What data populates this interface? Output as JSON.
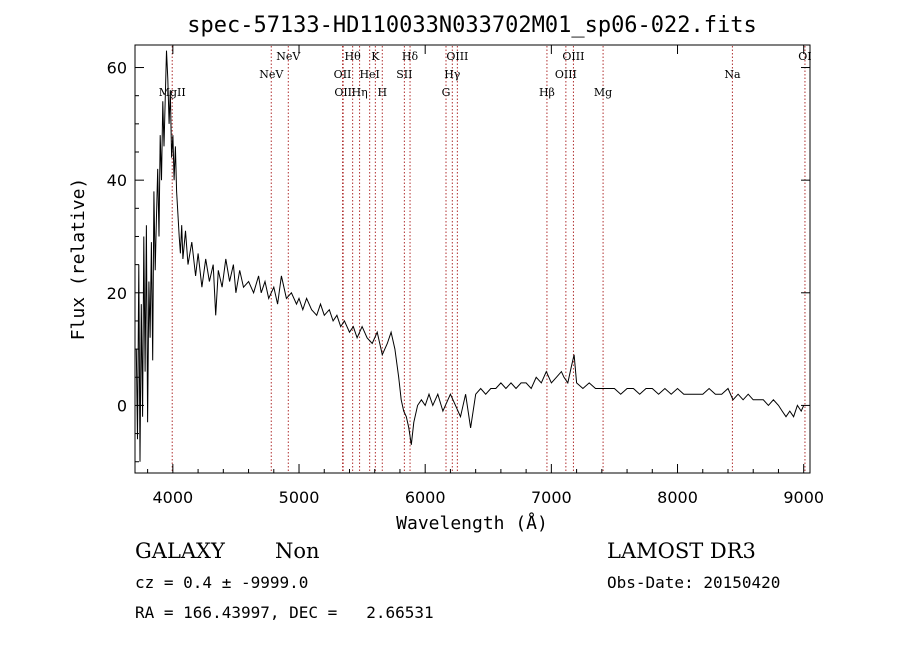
{
  "chart_data": {
    "type": "line",
    "title": "spec-57133-HD110033N033702M01_sp06-022.fits",
    "xlabel": "Wavelength (Å)",
    "ylabel": "Flux (relative)",
    "xlim": [
      3700,
      9050
    ],
    "ylim": [
      -12,
      64
    ],
    "xticks": [
      4000,
      5000,
      6000,
      7000,
      8000,
      9000
    ],
    "yticks": [
      0,
      20,
      40,
      60
    ],
    "grid": false,
    "line_color": "#000000",
    "marker_color": "#b03030",
    "series": [
      {
        "values": [
          [
            3710,
            10
          ],
          [
            3720,
            -6
          ],
          [
            3730,
            25
          ],
          [
            3740,
            -10
          ],
          [
            3750,
            18
          ],
          [
            3760,
            -2
          ],
          [
            3770,
            30
          ],
          [
            3780,
            6
          ],
          [
            3790,
            32
          ],
          [
            3800,
            -3
          ],
          [
            3810,
            22
          ],
          [
            3820,
            12
          ],
          [
            3830,
            29
          ],
          [
            3840,
            8
          ],
          [
            3850,
            38
          ],
          [
            3860,
            24
          ],
          [
            3870,
            33
          ],
          [
            3880,
            42
          ],
          [
            3890,
            30
          ],
          [
            3900,
            48
          ],
          [
            3910,
            40
          ],
          [
            3920,
            54
          ],
          [
            3930,
            46
          ],
          [
            3950,
            63
          ],
          [
            3960,
            58
          ],
          [
            3970,
            50
          ],
          [
            3980,
            56
          ],
          [
            3990,
            44
          ],
          [
            4000,
            48
          ],
          [
            4010,
            40
          ],
          [
            4020,
            46
          ],
          [
            4030,
            38
          ],
          [
            4040,
            34
          ],
          [
            4050,
            30
          ],
          [
            4060,
            27
          ],
          [
            4070,
            32
          ],
          [
            4080,
            26
          ],
          [
            4100,
            31
          ],
          [
            4120,
            25
          ],
          [
            4150,
            29
          ],
          [
            4180,
            23
          ],
          [
            4200,
            27
          ],
          [
            4230,
            21
          ],
          [
            4260,
            26
          ],
          [
            4290,
            22
          ],
          [
            4320,
            25
          ],
          [
            4340,
            16
          ],
          [
            4360,
            24
          ],
          [
            4390,
            21
          ],
          [
            4420,
            26
          ],
          [
            4450,
            22
          ],
          [
            4480,
            25
          ],
          [
            4500,
            20
          ],
          [
            4530,
            24
          ],
          [
            4560,
            21
          ],
          [
            4600,
            22
          ],
          [
            4640,
            20
          ],
          [
            4680,
            23
          ],
          [
            4700,
            20
          ],
          [
            4730,
            22
          ],
          [
            4760,
            19
          ],
          [
            4800,
            21
          ],
          [
            4830,
            18
          ],
          [
            4860,
            23
          ],
          [
            4900,
            19
          ],
          [
            4940,
            20
          ],
          [
            4980,
            18
          ],
          [
            5000,
            19
          ],
          [
            5030,
            17
          ],
          [
            5060,
            19
          ],
          [
            5100,
            17
          ],
          [
            5140,
            16
          ],
          [
            5170,
            18
          ],
          [
            5200,
            16
          ],
          [
            5240,
            17
          ],
          [
            5270,
            15
          ],
          [
            5300,
            16
          ],
          [
            5330,
            14
          ],
          [
            5360,
            15
          ],
          [
            5400,
            13
          ],
          [
            5430,
            14
          ],
          [
            5460,
            12
          ],
          [
            5500,
            14
          ],
          [
            5540,
            12
          ],
          [
            5580,
            11
          ],
          [
            5620,
            13
          ],
          [
            5660,
            9
          ],
          [
            5700,
            11
          ],
          [
            5730,
            13
          ],
          [
            5760,
            10
          ],
          [
            5790,
            5
          ],
          [
            5810,
            1
          ],
          [
            5830,
            -1
          ],
          [
            5850,
            -2
          ],
          [
            5870,
            -4
          ],
          [
            5890,
            -7
          ],
          [
            5910,
            -3
          ],
          [
            5940,
            0
          ],
          [
            5970,
            1
          ],
          [
            6000,
            0
          ],
          [
            6030,
            2
          ],
          [
            6060,
            0
          ],
          [
            6100,
            2
          ],
          [
            6140,
            -1
          ],
          [
            6180,
            1
          ],
          [
            6200,
            2
          ],
          [
            6240,
            0
          ],
          [
            6280,
            -2
          ],
          [
            6320,
            2
          ],
          [
            6360,
            -4
          ],
          [
            6400,
            2
          ],
          [
            6440,
            3
          ],
          [
            6480,
            2
          ],
          [
            6520,
            3
          ],
          [
            6560,
            3
          ],
          [
            6600,
            4
          ],
          [
            6640,
            3
          ],
          [
            6680,
            4
          ],
          [
            6720,
            3
          ],
          [
            6760,
            4
          ],
          [
            6800,
            4
          ],
          [
            6840,
            3
          ],
          [
            6880,
            5
          ],
          [
            6920,
            4
          ],
          [
            6960,
            6
          ],
          [
            7000,
            4
          ],
          [
            7040,
            5
          ],
          [
            7080,
            6
          ],
          [
            7100,
            5
          ],
          [
            7130,
            4
          ],
          [
            7160,
            7
          ],
          [
            7180,
            9
          ],
          [
            7200,
            4
          ],
          [
            7250,
            3
          ],
          [
            7300,
            4
          ],
          [
            7350,
            3
          ],
          [
            7400,
            3
          ],
          [
            7450,
            3
          ],
          [
            7500,
            3
          ],
          [
            7550,
            2
          ],
          [
            7600,
            3
          ],
          [
            7650,
            3
          ],
          [
            7700,
            2
          ],
          [
            7750,
            3
          ],
          [
            7800,
            3
          ],
          [
            7850,
            2
          ],
          [
            7900,
            3
          ],
          [
            7950,
            2
          ],
          [
            8000,
            3
          ],
          [
            8050,
            2
          ],
          [
            8100,
            2
          ],
          [
            8150,
            2
          ],
          [
            8200,
            2
          ],
          [
            8250,
            3
          ],
          [
            8300,
            2
          ],
          [
            8350,
            2
          ],
          [
            8400,
            3
          ],
          [
            8440,
            1
          ],
          [
            8480,
            2
          ],
          [
            8520,
            1
          ],
          [
            8560,
            2
          ],
          [
            8600,
            1
          ],
          [
            8640,
            1
          ],
          [
            8680,
            1
          ],
          [
            8720,
            0
          ],
          [
            8760,
            1
          ],
          [
            8800,
            0
          ],
          [
            8830,
            -1
          ],
          [
            8860,
            -2
          ],
          [
            8890,
            -1
          ],
          [
            8920,
            -2
          ],
          [
            8950,
            0
          ],
          [
            8980,
            -1
          ],
          [
            9000,
            0
          ]
        ]
      }
    ],
    "lines": [
      {
        "wavelength": 3995,
        "label": "MgII",
        "row": 3
      },
      {
        "wavelength": 4780,
        "label": "NeV",
        "row": 2
      },
      {
        "wavelength": 4915,
        "label": "NeV",
        "row": 1
      },
      {
        "wavelength": 5345,
        "label": "OII",
        "row": 2
      },
      {
        "wavelength": 5350,
        "label": "OII",
        "row": 3
      },
      {
        "wavelength": 5425,
        "label": "Hθ",
        "row": 1
      },
      {
        "wavelength": 5480,
        "label": "Hη",
        "row": 3
      },
      {
        "wavelength": 5560,
        "label": "HeI",
        "row": 2
      },
      {
        "wavelength": 5605,
        "label": "K",
        "row": 1
      },
      {
        "wavelength": 5660,
        "label": "H",
        "row": 3
      },
      {
        "wavelength": 5835,
        "label": "SII",
        "row": 2
      },
      {
        "wavelength": 5880,
        "label": "Hδ",
        "row": 1
      },
      {
        "wavelength": 6165,
        "label": "G",
        "row": 3
      },
      {
        "wavelength": 6215,
        "label": "Hγ",
        "row": 2
      },
      {
        "wavelength": 6255,
        "label": "OIII",
        "row": 1
      },
      {
        "wavelength": 6965,
        "label": "Hβ",
        "row": 3
      },
      {
        "wavelength": 7115,
        "label": "OIII",
        "row": 2
      },
      {
        "wavelength": 7175,
        "label": "OIII",
        "row": 1
      },
      {
        "wavelength": 7410,
        "label": "Mg",
        "row": 3
      },
      {
        "wavelength": 8435,
        "label": "Na",
        "row": 2
      },
      {
        "wavelength": 9010,
        "label": "OI",
        "row": 1
      }
    ]
  },
  "footer": {
    "class_label": "GALAXY",
    "subclass_label": "Non",
    "survey_label": "LAMOST DR3",
    "cz_text": "cz = 0.4 ± -9999.0",
    "obs_date_text": "Obs-Date: 20150420",
    "coords_text": "RA = 166.43997, DEC =   2.66531"
  }
}
